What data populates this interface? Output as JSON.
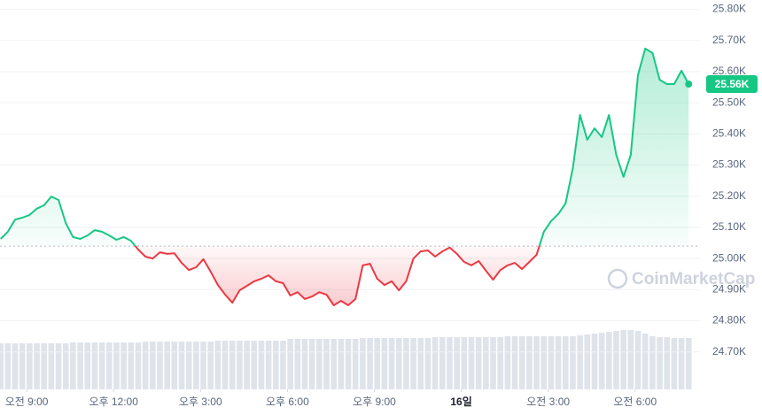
{
  "chart_data": {
    "type": "line",
    "x": [
      -0.9,
      -0.65,
      -0.4,
      -0.15,
      0.1,
      0.35,
      0.6,
      0.85,
      1.1,
      1.35,
      1.6,
      1.85,
      2.1,
      2.35,
      2.6,
      2.85,
      3.1,
      3.35,
      3.6,
      3.85,
      4.1,
      4.35,
      4.6,
      4.85,
      5.1,
      5.35,
      5.6,
      5.85,
      6.1,
      6.35,
      6.6,
      6.85,
      7.1,
      7.35,
      7.6,
      7.85,
      8.1,
      8.35,
      8.6,
      8.85,
      9.1,
      9.35,
      9.6,
      9.85,
      10.1,
      10.35,
      10.6,
      10.85,
      11.1,
      11.35,
      11.6,
      11.85,
      12.1,
      12.35,
      12.6,
      12.85,
      13.1,
      13.35,
      13.6,
      13.85,
      14.1,
      14.35,
      14.6,
      14.85,
      15.1,
      15.35,
      15.6,
      15.85,
      16.1,
      16.35,
      16.6,
      16.85,
      17.1,
      17.35,
      17.6,
      17.85,
      18.1,
      18.35,
      18.6,
      18.85,
      19.1,
      19.35,
      19.6,
      19.85,
      20.1,
      20.35,
      20.6,
      20.85,
      21.1,
      21.35,
      21.6,
      21.85,
      22.1,
      22.35,
      22.6,
      22.85
    ],
    "values": [
      25063,
      25086,
      25125,
      25131,
      25140,
      25160,
      25171,
      25199,
      25188,
      25114,
      25069,
      25063,
      25074,
      25091,
      25086,
      25074,
      25060,
      25069,
      25057,
      25029,
      25006,
      25000,
      25020,
      25015,
      25017,
      24986,
      24963,
      24972,
      24998,
      24958,
      24915,
      24884,
      24858,
      24898,
      24912,
      24927,
      24935,
      24946,
      24927,
      24921,
      24881,
      24892,
      24870,
      24878,
      24892,
      24884,
      24850,
      24864,
      24850,
      24870,
      24978,
      24983,
      24935,
      24915,
      24927,
      24898,
      24927,
      25000,
      25023,
      25026,
      25006,
      25023,
      25035,
      25015,
      24989,
      24978,
      24992,
      24961,
      24932,
      24963,
      24978,
      24986,
      24966,
      24989,
      25012,
      25086,
      25120,
      25143,
      25177,
      25290,
      25461,
      25381,
      25418,
      25390,
      25461,
      25333,
      25262,
      25333,
      25589,
      25674,
      25660,
      25574,
      25560,
      25560,
      25603,
      25560
    ],
    "volume": [
      52,
      52,
      52,
      52,
      52,
      52,
      52,
      52,
      52,
      52,
      53,
      53,
      53,
      53,
      53,
      53,
      53,
      53,
      53,
      53,
      54,
      54,
      54,
      54,
      54,
      54,
      54,
      54,
      54,
      54,
      55,
      55,
      55,
      55,
      55,
      55,
      55,
      55,
      55,
      55,
      57,
      57,
      57,
      57,
      57,
      57,
      57,
      57,
      57,
      57,
      58,
      58,
      58,
      58,
      58,
      58,
      58,
      58,
      58,
      58,
      59,
      59,
      59,
      59,
      59,
      59,
      59,
      59,
      59,
      59,
      60,
      60,
      60,
      60,
      60,
      60,
      60,
      60,
      60,
      60,
      61,
      62,
      63,
      64,
      65,
      66,
      67,
      67,
      66,
      63,
      60,
      59,
      59,
      58,
      58,
      58
    ],
    "volume_lim": [
      0,
      100
    ],
    "baseline": 25040,
    "current_price": {
      "value": 25560,
      "label": "25.56K"
    },
    "up_color": "#16c784",
    "down_color": "#ea3943",
    "volume_color": "#dfe3ea",
    "xlim": [
      -0.92,
      23.24
    ],
    "xticks": [
      {
        "value": 0,
        "label": "오전 9:00"
      },
      {
        "value": 3,
        "label": "오후 12:00"
      },
      {
        "value": 6,
        "label": "오후 3:00"
      },
      {
        "value": 9,
        "label": "오후 6:00"
      },
      {
        "value": 12,
        "label": "오후 9:00"
      },
      {
        "value": 15,
        "label": "16일",
        "bold": true
      },
      {
        "value": 18,
        "label": "오전 3:00"
      },
      {
        "value": 21,
        "label": "오전 6:00"
      }
    ],
    "ylim": [
      24580,
      25830
    ],
    "yticks": [
      {
        "value": 24700,
        "label": "24.70K"
      },
      {
        "value": 24800,
        "label": "24.80K"
      },
      {
        "value": 24900,
        "label": "24.90K"
      },
      {
        "value": 25000,
        "label": "25.00K"
      },
      {
        "value": 25100,
        "label": "25.10K"
      },
      {
        "value": 25200,
        "label": "25.20K"
      },
      {
        "value": 25300,
        "label": "25.30K"
      },
      {
        "value": 25400,
        "label": "25.40K"
      },
      {
        "value": 25500,
        "label": "25.50K"
      },
      {
        "value": 25600,
        "label": "25.60K"
      },
      {
        "value": 25700,
        "label": "25.70K"
      },
      {
        "value": 25800,
        "label": "25.80K"
      }
    ],
    "grid": true,
    "watermark": "CoinMarketCap"
  }
}
